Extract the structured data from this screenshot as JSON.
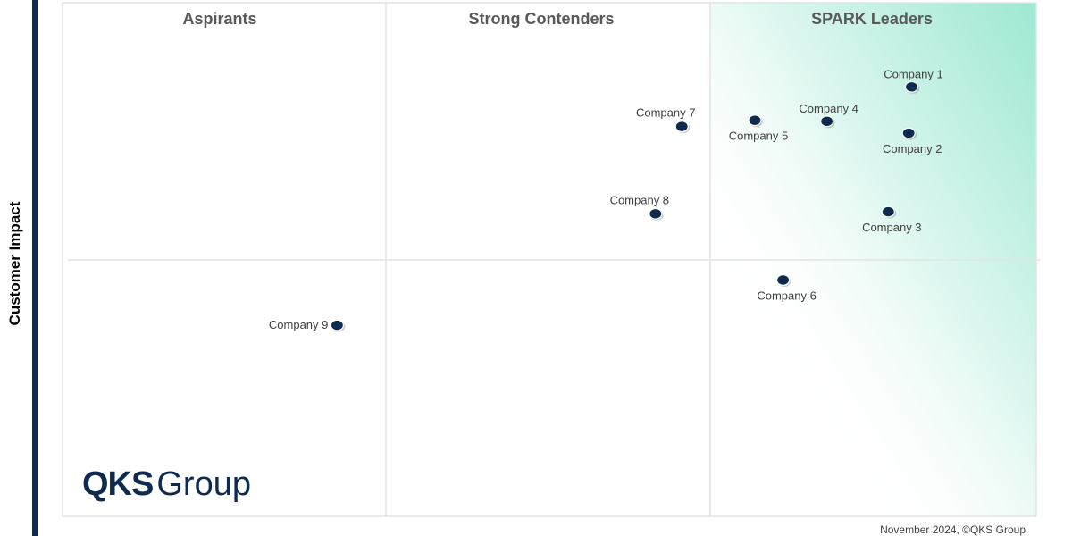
{
  "chart_data": {
    "type": "scatter",
    "ylabel": "Customer Impact",
    "quadrants": [
      {
        "label": "Aspirants"
      },
      {
        "label": "Strong Contenders"
      },
      {
        "label": "SPARK Leaders"
      }
    ],
    "points": [
      {
        "name": "Company 1",
        "x": 0.872,
        "y": 0.836,
        "label_pos": "above"
      },
      {
        "name": "Company 2",
        "x": 0.869,
        "y": 0.746,
        "label_pos": "below"
      },
      {
        "name": "Company 3",
        "x": 0.848,
        "y": 0.593,
        "label_pos": "below"
      },
      {
        "name": "Company 4",
        "x": 0.785,
        "y": 0.769,
        "label_pos": "above"
      },
      {
        "name": "Company 5",
        "x": 0.711,
        "y": 0.771,
        "label_pos": "below"
      },
      {
        "name": "Company 6",
        "x": 0.74,
        "y": 0.46,
        "label_pos": "below"
      },
      {
        "name": "Company 7",
        "x": 0.636,
        "y": 0.759,
        "label_pos": "above-left"
      },
      {
        "name": "Company 8",
        "x": 0.609,
        "y": 0.589,
        "label_pos": "above-left"
      },
      {
        "name": "Company 9",
        "x": 0.282,
        "y": 0.372,
        "label_pos": "left"
      }
    ],
    "colors": {
      "point": "#0f2a4f",
      "leader_gradient": "#9ee8d2",
      "left_bar": "#0f2a4f",
      "grid": "#e3e3e3"
    }
  },
  "logo": {
    "bold": "QKS",
    "light": "Group"
  },
  "footer": "November 2024, ©QKS Group"
}
